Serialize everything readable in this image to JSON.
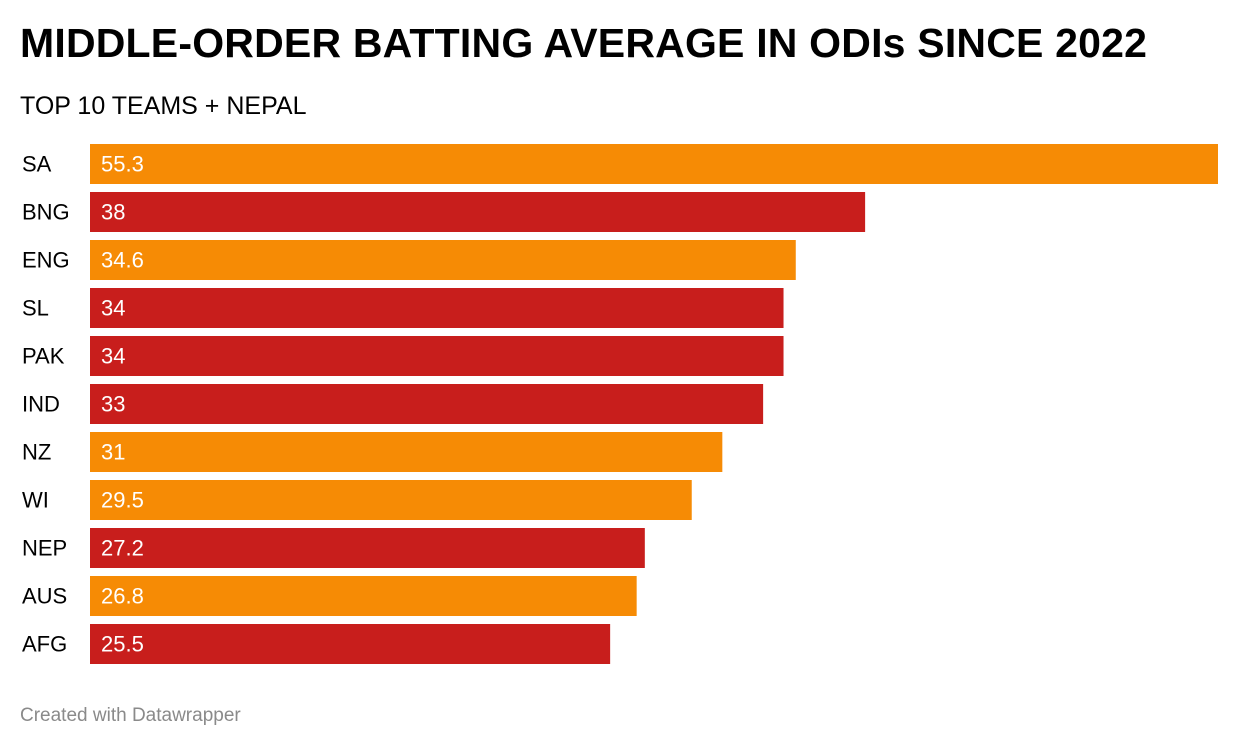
{
  "chart_data": {
    "type": "bar",
    "orientation": "horizontal",
    "title": "MIDDLE-ORDER BATTING AVERAGE IN ODIs SINCE 2022",
    "subtitle": "TOP 10 TEAMS + NEPAL",
    "categories": [
      "SA",
      "BNG",
      "ENG",
      "SL",
      "PAK",
      "IND",
      "NZ",
      "WI",
      "NEP",
      "AUS",
      "AFG"
    ],
    "values": [
      55.3,
      38,
      34.6,
      34,
      34,
      33,
      31,
      29.5,
      27.2,
      26.8,
      25.5
    ],
    "value_labels": [
      "55.3",
      "38",
      "34.6",
      "34",
      "34",
      "33",
      "31",
      "29.5",
      "27.2",
      "26.8",
      "25.5"
    ],
    "bar_colors": [
      "#f68b05",
      "#c81e1c",
      "#f68b05",
      "#c81e1c",
      "#c81e1c",
      "#c81e1c",
      "#f68b05",
      "#f68b05",
      "#c81e1c",
      "#f68b05",
      "#c81e1c"
    ],
    "xlim": [
      0,
      55.3
    ],
    "xlabel": "",
    "ylabel": "",
    "grid": false,
    "legend": "none"
  },
  "colors": {
    "orange": "#f68b05",
    "red": "#c81e1c",
    "label_on_bar": "#ffffff",
    "footer_text": "#8a8a8a"
  },
  "footer": {
    "credit": "Created with Datawrapper"
  }
}
